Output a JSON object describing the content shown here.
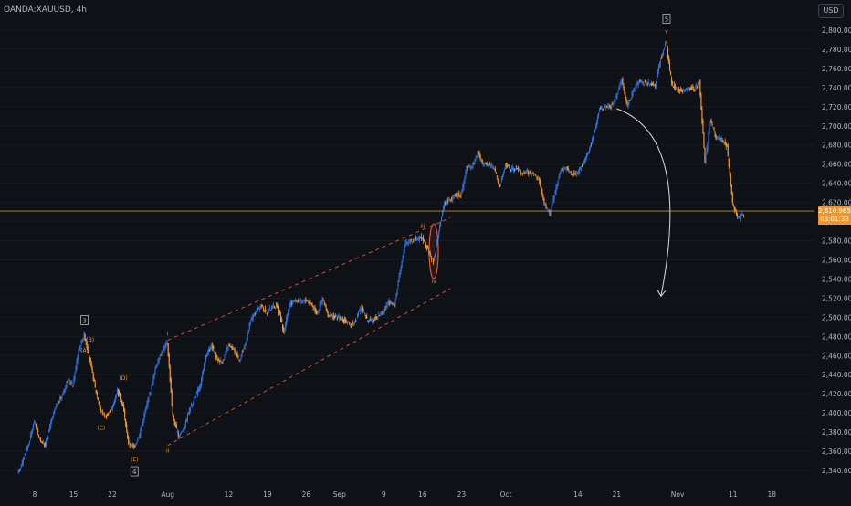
{
  "header": {
    "symbol": "OANDA:XAUUSD, 4h"
  },
  "currency_badge": "USD",
  "price_label": {
    "price": "2,610.965",
    "countdown": "03:01:33"
  },
  "colors": {
    "background": "#0e1116",
    "up": "#2f6fd6",
    "down": "#f0962e",
    "text": "#b2b5be",
    "channel": "#e0563a",
    "wave_label": "#f0962e",
    "price_line": "#f0962e",
    "arrow": "#c9ccd4",
    "ellipse": "#e0563a"
  },
  "chart_data": {
    "type": "candlestick",
    "symbol": "OANDA:XAUUSD",
    "timeframe": "4h",
    "currency": "USD",
    "y_axis": {
      "min": 2330,
      "max": 2820,
      "ticks": [
        "2,340.000",
        "2,360.000",
        "2,380.000",
        "2,400.000",
        "2,420.000",
        "2,440.000",
        "2,460.000",
        "2,480.000",
        "2,500.000",
        "2,520.000",
        "2,540.000",
        "2,560.000",
        "2,580.000",
        "2,600.000",
        "2,620.000",
        "2,640.000",
        "2,660.000",
        "2,680.000",
        "2,700.000",
        "2,720.000",
        "2,740.000",
        "2,760.000",
        "2,780.000",
        "2,800.000"
      ]
    },
    "x_axis": {
      "ticks": [
        "8",
        "15",
        "22",
        "Aug",
        "12",
        "19",
        "26",
        "Sep",
        "9",
        "16",
        "23",
        "Oct",
        "14",
        "21",
        "Nov",
        "11",
        "18"
      ]
    },
    "last_price": 2610.965,
    "price_path": [
      {
        "d": "Jul 5",
        "p": 2336
      },
      {
        "d": "Jul 6",
        "p": 2352
      },
      {
        "d": "Jul 7",
        "p": 2368
      },
      {
        "d": "Jul 8",
        "p": 2392
      },
      {
        "d": "Jul 9",
        "p": 2372
      },
      {
        "d": "Jul 10",
        "p": 2366
      },
      {
        "d": "Jul 11",
        "p": 2390
      },
      {
        "d": "Jul 12",
        "p": 2408
      },
      {
        "d": "Jul 13",
        "p": 2418
      },
      {
        "d": "Jul 14",
        "p": 2434
      },
      {
        "d": "Jul 15",
        "p": 2430
      },
      {
        "d": "Jul 16",
        "p": 2466
      },
      {
        "d": "Jul 17",
        "p": 2482
      },
      {
        "d": "Jul 18",
        "p": 2456
      },
      {
        "d": "Jul 19",
        "p": 2426
      },
      {
        "d": "Jul 20",
        "p": 2402
      },
      {
        "d": "Jul 21",
        "p": 2396
      },
      {
        "d": "Jul 22",
        "p": 2404
      },
      {
        "d": "Jul 23",
        "p": 2424
      },
      {
        "d": "Jul 24",
        "p": 2408
      },
      {
        "d": "Jul 25",
        "p": 2368
      },
      {
        "d": "Jul 26",
        "p": 2364
      },
      {
        "d": "Jul 27",
        "p": 2378
      },
      {
        "d": "Jul 28",
        "p": 2402
      },
      {
        "d": "Jul 29",
        "p": 2424
      },
      {
        "d": "Jul 30",
        "p": 2450
      },
      {
        "d": "Jul 31",
        "p": 2464
      },
      {
        "d": "Aug 1",
        "p": 2474
      },
      {
        "d": "Aug 2",
        "p": 2396
      },
      {
        "d": "Aug 3",
        "p": 2376
      },
      {
        "d": "Aug 4",
        "p": 2384
      },
      {
        "d": "Aug 5",
        "p": 2404
      },
      {
        "d": "Aug 6",
        "p": 2416
      },
      {
        "d": "Aug 7",
        "p": 2430
      },
      {
        "d": "Aug 8",
        "p": 2460
      },
      {
        "d": "Aug 9",
        "p": 2470
      },
      {
        "d": "Aug 10",
        "p": 2456
      },
      {
        "d": "Aug 11",
        "p": 2454
      },
      {
        "d": "Aug 12",
        "p": 2470
      },
      {
        "d": "Aug 13",
        "p": 2466
      },
      {
        "d": "Aug 14",
        "p": 2456
      },
      {
        "d": "Aug 15",
        "p": 2470
      },
      {
        "d": "Aug 16",
        "p": 2496
      },
      {
        "d": "Aug 17",
        "p": 2506
      },
      {
        "d": "Aug 18",
        "p": 2512
      },
      {
        "d": "Aug 19",
        "p": 2504
      },
      {
        "d": "Aug 20",
        "p": 2512
      },
      {
        "d": "Aug 21",
        "p": 2510
      },
      {
        "d": "Aug 22",
        "p": 2484
      },
      {
        "d": "Aug 23",
        "p": 2512
      },
      {
        "d": "Aug 24",
        "p": 2518
      },
      {
        "d": "Aug 25",
        "p": 2516
      },
      {
        "d": "Aug 26",
        "p": 2518
      },
      {
        "d": "Aug 27",
        "p": 2514
      },
      {
        "d": "Aug 28",
        "p": 2504
      },
      {
        "d": "Aug 29",
        "p": 2520
      },
      {
        "d": "Aug 30",
        "p": 2502
      },
      {
        "d": "Aug 31",
        "p": 2500
      },
      {
        "d": "Sep 1",
        "p": 2500
      },
      {
        "d": "Sep 2",
        "p": 2496
      },
      {
        "d": "Sep 3",
        "p": 2492
      },
      {
        "d": "Sep 4",
        "p": 2496
      },
      {
        "d": "Sep 5",
        "p": 2512
      },
      {
        "d": "Sep 6",
        "p": 2498
      },
      {
        "d": "Sep 7",
        "p": 2496
      },
      {
        "d": "Sep 8",
        "p": 2502
      },
      {
        "d": "Sep 9",
        "p": 2506
      },
      {
        "d": "Sep 10",
        "p": 2516
      },
      {
        "d": "Sep 11",
        "p": 2512
      },
      {
        "d": "Sep 12",
        "p": 2550
      },
      {
        "d": "Sep 13",
        "p": 2578
      },
      {
        "d": "Sep 14",
        "p": 2580
      },
      {
        "d": "Sep 15",
        "p": 2582
      },
      {
        "d": "Sep 16",
        "p": 2584
      },
      {
        "d": "Sep 17",
        "p": 2570
      },
      {
        "d": "Sep 18",
        "p": 2558
      },
      {
        "d": "Sep 19",
        "p": 2590
      },
      {
        "d": "Sep 20",
        "p": 2620
      },
      {
        "d": "Sep 21",
        "p": 2622
      },
      {
        "d": "Sep 22",
        "p": 2628
      },
      {
        "d": "Sep 23",
        "p": 2628
      },
      {
        "d": "Sep 24",
        "p": 2656
      },
      {
        "d": "Sep 25",
        "p": 2658
      },
      {
        "d": "Sep 26",
        "p": 2672
      },
      {
        "d": "Sep 27",
        "p": 2660
      },
      {
        "d": "Sep 28",
        "p": 2660
      },
      {
        "d": "Sep 29",
        "p": 2656
      },
      {
        "d": "Sep 30",
        "p": 2636
      },
      {
        "d": "Oct 1",
        "p": 2660
      },
      {
        "d": "Oct 2",
        "p": 2654
      },
      {
        "d": "Oct 3",
        "p": 2656
      },
      {
        "d": "Oct 4",
        "p": 2650
      },
      {
        "d": "Oct 5",
        "p": 2652
      },
      {
        "d": "Oct 6",
        "p": 2650
      },
      {
        "d": "Oct 7",
        "p": 2644
      },
      {
        "d": "Oct 8",
        "p": 2620
      },
      {
        "d": "Oct 9",
        "p": 2608
      },
      {
        "d": "Oct 10",
        "p": 2632
      },
      {
        "d": "Oct 11",
        "p": 2654
      },
      {
        "d": "Oct 12",
        "p": 2656
      },
      {
        "d": "Oct 13",
        "p": 2650
      },
      {
        "d": "Oct 14",
        "p": 2650
      },
      {
        "d": "Oct 15",
        "p": 2660
      },
      {
        "d": "Oct 16",
        "p": 2674
      },
      {
        "d": "Oct 17",
        "p": 2692
      },
      {
        "d": "Oct 18",
        "p": 2718
      },
      {
        "d": "Oct 19",
        "p": 2720
      },
      {
        "d": "Oct 20",
        "p": 2720
      },
      {
        "d": "Oct 21",
        "p": 2730
      },
      {
        "d": "Oct 22",
        "p": 2748
      },
      {
        "d": "Oct 23",
        "p": 2720
      },
      {
        "d": "Oct 24",
        "p": 2736
      },
      {
        "d": "Oct 25",
        "p": 2746
      },
      {
        "d": "Oct 26",
        "p": 2745
      },
      {
        "d": "Oct 27",
        "p": 2744
      },
      {
        "d": "Oct 28",
        "p": 2742
      },
      {
        "d": "Oct 29",
        "p": 2770
      },
      {
        "d": "Oct 30",
        "p": 2788
      },
      {
        "d": "Oct 31",
        "p": 2744
      },
      {
        "d": "Nov 1",
        "p": 2738
      },
      {
        "d": "Nov 2",
        "p": 2736
      },
      {
        "d": "Nov 3",
        "p": 2740
      },
      {
        "d": "Nov 4",
        "p": 2738
      },
      {
        "d": "Nov 5",
        "p": 2746
      },
      {
        "d": "Nov 6",
        "p": 2662
      },
      {
        "d": "Nov 7",
        "p": 2706
      },
      {
        "d": "Nov 8",
        "p": 2688
      },
      {
        "d": "Nov 9",
        "p": 2686
      },
      {
        "d": "Nov 10",
        "p": 2678
      },
      {
        "d": "Nov 11",
        "p": 2618
      },
      {
        "d": "Nov 12",
        "p": 2604
      },
      {
        "d": "Nov 13",
        "p": 2608
      }
    ],
    "annotations": {
      "wave_labels": [
        {
          "text": "3",
          "date": "Jul 17",
          "price": 2497,
          "boxed": true
        },
        {
          "text": "(B)",
          "date": "Jul 18",
          "price": 2477,
          "boxed": false
        },
        {
          "text": "(A)",
          "date": "Jul 17",
          "price": 2466,
          "boxed": false
        },
        {
          "text": "(D)",
          "date": "Jul 24",
          "price": 2437,
          "boxed": false
        },
        {
          "text": "(C)",
          "date": "Jul 20",
          "price": 2385,
          "boxed": false
        },
        {
          "text": "(E)",
          "date": "Jul 26",
          "price": 2352,
          "boxed": false
        },
        {
          "text": "4",
          "date": "Jul 26",
          "price": 2339,
          "boxed": true
        },
        {
          "text": "i",
          "date": "Aug 1",
          "price": 2483,
          "boxed": false
        },
        {
          "text": "ii",
          "date": "Aug 1",
          "price": 2361,
          "boxed": false
        },
        {
          "text": "iii",
          "date": "Sep 16",
          "price": 2596,
          "boxed": false
        },
        {
          "text": "iv",
          "date": "Sep 18",
          "price": 2538,
          "boxed": false
        },
        {
          "text": "5",
          "date": "Oct 30",
          "price": 2812,
          "boxed": true
        },
        {
          "text": "v",
          "date": "Oct 30",
          "price": 2799,
          "boxed": false
        }
      ],
      "channel": {
        "upper": [
          {
            "date": "Aug 1",
            "price": 2476
          },
          {
            "date": "Sep 21",
            "price": 2604
          }
        ],
        "lower": [
          {
            "date": "Aug 1",
            "price": 2366
          },
          {
            "date": "Sep 21",
            "price": 2530
          }
        ]
      },
      "ellipse": {
        "date": "Sep 18",
        "price": 2569
      },
      "arrow": {
        "from": {
          "date": "Oct 21",
          "price": 2718
        },
        "to": {
          "date": "Oct 29",
          "price": 2522
        }
      }
    }
  }
}
